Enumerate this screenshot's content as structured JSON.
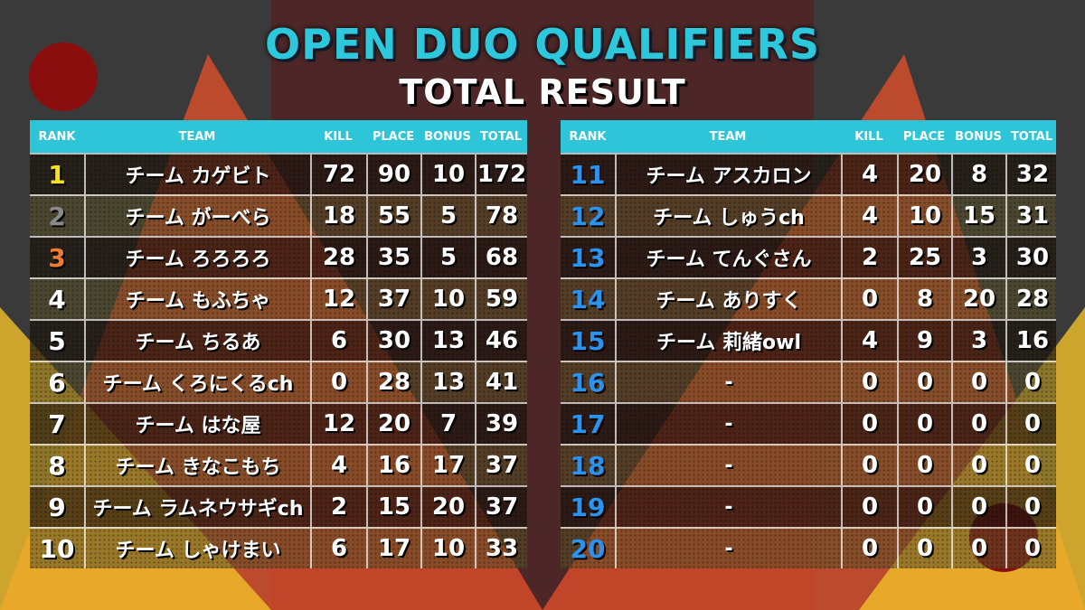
{
  "title": "OPEN DUO QUALIFIERS",
  "subtitle": "TOTAL RESULT",
  "tables": [
    {
      "columns": [
        "RANK",
        "TEAM",
        "KILL",
        "PLACE",
        "BONUS",
        "TOTAL"
      ],
      "rows": [
        [
          1,
          "チーム カゲビト",
          72,
          90,
          10,
          172
        ],
        [
          2,
          "チーム がーべら",
          18,
          55,
          5,
          78
        ],
        [
          3,
          "チーム ろろろろ",
          28,
          35,
          5,
          68
        ],
        [
          4,
          "チーム もふちゃ",
          12,
          37,
          10,
          59
        ],
        [
          5,
          "チーム ちるあ",
          6,
          30,
          13,
          46
        ],
        [
          6,
          "チーム くろにくるch",
          0,
          28,
          13,
          41
        ],
        [
          7,
          "チーム はな屋",
          12,
          20,
          7,
          39
        ],
        [
          8,
          "チーム きなこもち",
          4,
          16,
          17,
          37
        ],
        [
          9,
          "チーム ラムネウサギch",
          2,
          15,
          20,
          37
        ],
        [
          10,
          "チーム しゃけまい",
          6,
          17,
          10,
          33
        ]
      ]
    },
    {
      "columns": [
        "RANK",
        "TEAM",
        "KILL",
        "PLACE",
        "BONUS",
        "TOTAL"
      ],
      "rows": [
        [
          11,
          "チーム アスカロン",
          4,
          20,
          8,
          32
        ],
        [
          12,
          "チーム しゅうch",
          4,
          10,
          15,
          31
        ],
        [
          13,
          "チーム てんぐさん",
          2,
          25,
          3,
          30
        ],
        [
          14,
          "チーム ありすく",
          0,
          8,
          20,
          28
        ],
        [
          15,
          "チーム 莉緒owl",
          4,
          9,
          3,
          16
        ],
        [
          16,
          "-",
          0,
          0,
          0,
          0
        ],
        [
          17,
          "-",
          0,
          0,
          0,
          0
        ],
        [
          18,
          "-",
          0,
          0,
          0,
          0
        ],
        [
          19,
          "-",
          0,
          0,
          0,
          0
        ],
        [
          20,
          "-",
          0,
          0,
          0,
          0
        ]
      ]
    }
  ]
}
